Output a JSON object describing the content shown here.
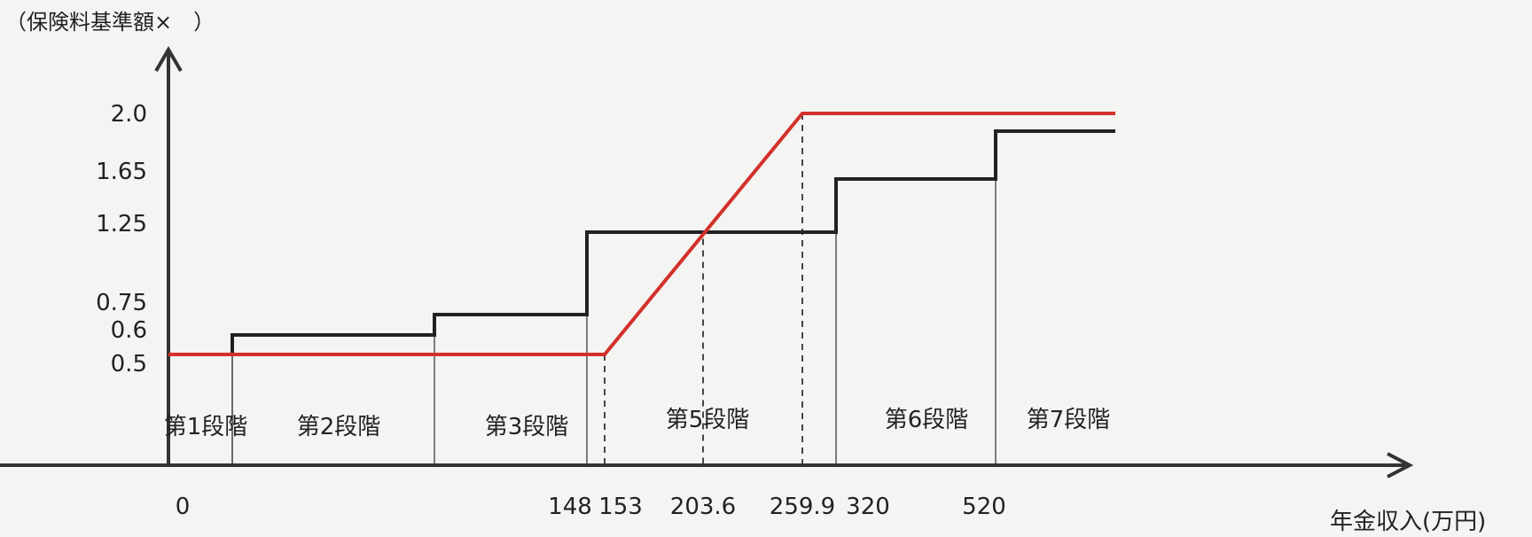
{
  "chart_data": {
    "type": "line",
    "y_axis_title": "（保険料基準額×　）",
    "x_axis_title": "年金収入(万円)",
    "y_ticks": [
      {
        "label": "2.0",
        "value": 2.0
      },
      {
        "label": "1.65",
        "value": 1.65
      },
      {
        "label": "1.25",
        "value": 1.25
      },
      {
        "label": "0.75",
        "value": 0.75
      },
      {
        "label": "0.6",
        "value": 0.6
      },
      {
        "label": "0.5",
        "value": 0.5
      }
    ],
    "x_ticks": [
      "0",
      "148",
      "153",
      "203.6",
      "259.9",
      "320",
      "520"
    ],
    "stages": [
      "第1段階",
      "第2段階",
      "第3段階",
      "第5段階",
      "第6段階",
      "第7段階"
    ],
    "series": [
      {
        "color": "#222222",
        "style": "step",
        "points": [
          [
            0,
            0.5
          ],
          [
            20,
            0.5
          ],
          [
            20,
            0.6
          ],
          [
            80,
            0.6
          ],
          [
            80,
            0.75
          ],
          [
            148,
            0.75
          ],
          [
            148,
            1.25
          ],
          [
            320,
            1.25
          ],
          [
            320,
            1.65
          ],
          [
            520,
            1.65
          ],
          [
            520,
            1.85
          ],
          [
            580,
            1.85
          ]
        ]
      },
      {
        "color": "#d3302a",
        "style": "line",
        "points": [
          [
            0,
            0.5
          ],
          [
            153,
            0.5
          ],
          [
            259.9,
            2.0
          ],
          [
            580,
            2.0
          ]
        ]
      }
    ],
    "dashed_markers": [
      153,
      203.6,
      259.9
    ],
    "colors": {
      "axis": "#333333",
      "step": "#222222",
      "red": "#d3302a"
    }
  }
}
